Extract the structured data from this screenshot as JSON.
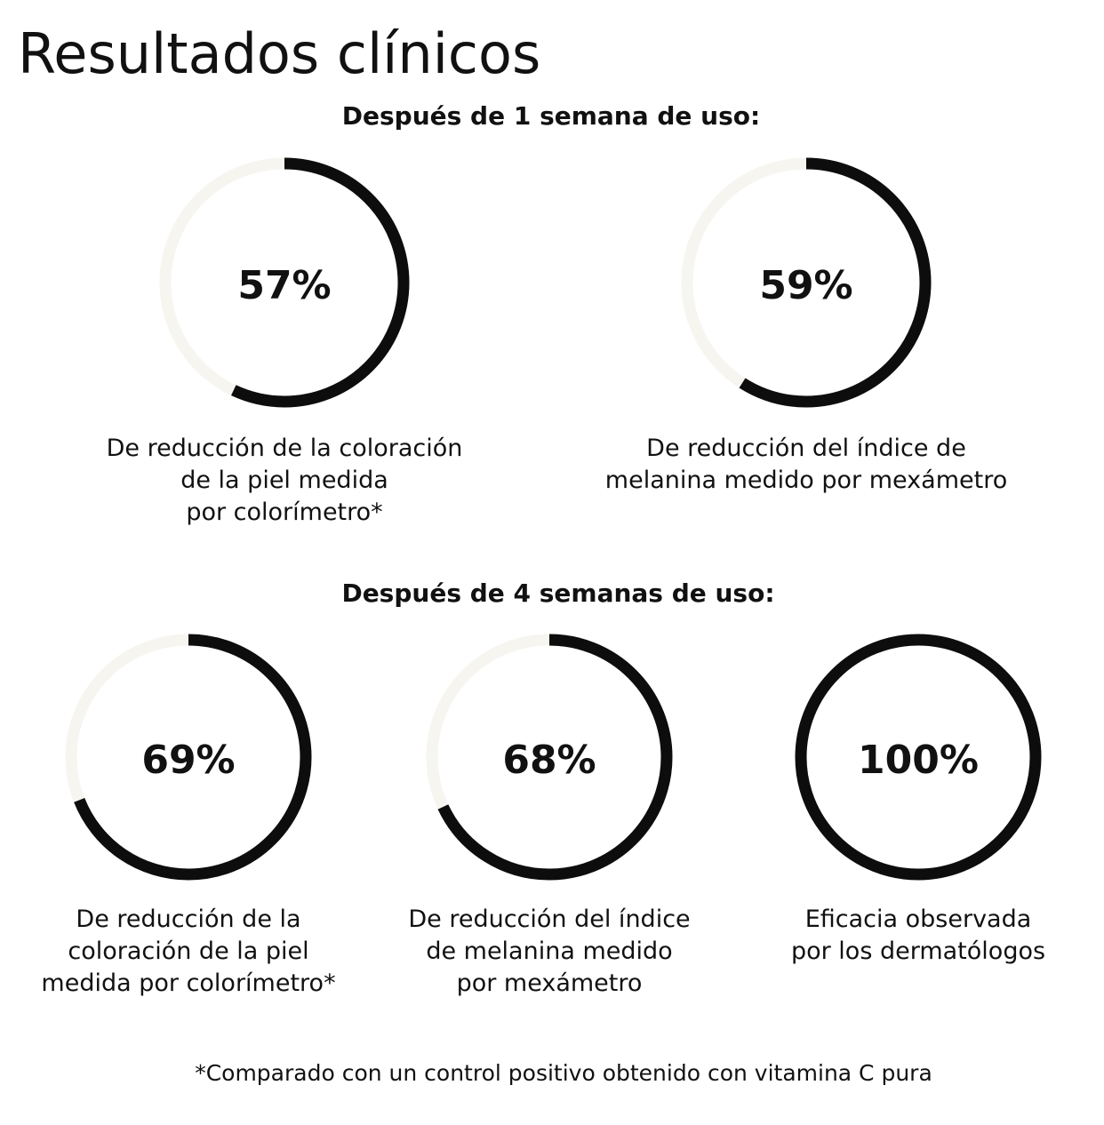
{
  "title": "Resultados clínicos",
  "sections": [
    {
      "heading": "Después de 1 semana de uso:",
      "items": [
        {
          "value": 57,
          "value_label": "57%",
          "caption": [
            "De reducción de la coloración",
            "de la piel medida",
            "por colorímetro*"
          ]
        },
        {
          "value": 59,
          "value_label": "59%",
          "caption": [
            "De reducción del índice de",
            "melanina medido por mexámetro"
          ]
        }
      ]
    },
    {
      "heading": "Después de 4 semanas de uso:",
      "items": [
        {
          "value": 69,
          "value_label": "69%",
          "caption": [
            "De reducción de la",
            "coloración de la piel",
            "medida por colorímetro*"
          ]
        },
        {
          "value": 68,
          "value_label": "68%",
          "caption": [
            "De reducción del índice",
            "de melanina medido",
            "por mexámetro"
          ]
        },
        {
          "value": 100,
          "value_label": "100%",
          "caption": [
            "Eficacia observada",
            "por los dermatólogos"
          ]
        }
      ]
    }
  ],
  "footnote": "*Comparado con un control positivo obtenido con vitamina C pura"
}
